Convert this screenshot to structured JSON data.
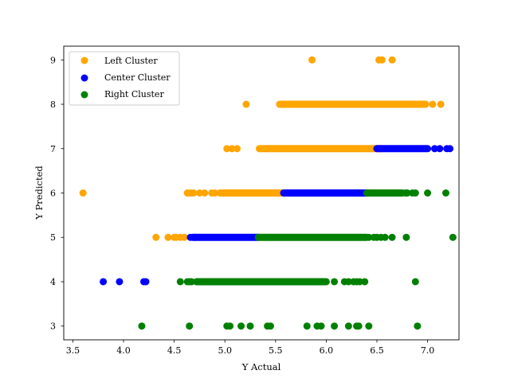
{
  "chart_data": {
    "type": "scatter",
    "title": "",
    "xlabel": "Y Actual",
    "ylabel": "Y Predicted",
    "xlim": [
      3.41,
      7.31
    ],
    "ylim": [
      2.69,
      9.31
    ],
    "xticks": [
      "3.5",
      "4.0",
      "4.5",
      "5.0",
      "5.5",
      "6.0",
      "6.5",
      "7.0"
    ],
    "yticks": [
      "3",
      "4",
      "5",
      "6",
      "7",
      "8",
      "9"
    ],
    "grid": false,
    "legend_position": "upper-left",
    "series": [
      {
        "name": "Left Cluster",
        "color": "#ffa500",
        "rows": [
          {
            "y": 9,
            "xs": [
              5.86,
              6.52,
              6.55,
              6.65
            ]
          },
          {
            "y": 8,
            "ranges": [
              [
                5.55,
                6.98
              ]
            ],
            "xs": [
              5.21,
              5.54,
              5.57,
              5.59,
              5.62,
              5.75,
              7.05,
              7.13
            ]
          },
          {
            "y": 7,
            "ranges": [
              [
                5.35,
                6.55
              ]
            ],
            "xs": [
              5.02,
              5.07,
              5.12,
              5.34
            ]
          },
          {
            "y": 6,
            "ranges": [
              [
                4.95,
                5.58
              ]
            ],
            "xs": [
              3.6,
              4.63,
              4.65,
              4.67,
              4.69,
              4.75,
              4.8,
              4.87,
              4.9
            ]
          },
          {
            "y": 5,
            "xs": [
              4.32,
              4.44,
              4.5,
              4.52,
              4.56,
              4.6
            ]
          }
        ]
      },
      {
        "name": "Center Cluster",
        "color": "#0000ff",
        "rows": [
          {
            "y": 7,
            "ranges": [
              [
                6.5,
                7.0
              ]
            ],
            "xs": [
              7.07,
              7.12,
              7.19,
              7.22
            ]
          },
          {
            "y": 6,
            "ranges": [
              [
                5.58,
                6.4
              ]
            ]
          },
          {
            "y": 5,
            "ranges": [
              [
                4.68,
                5.33
              ]
            ],
            "xs": [
              4.66,
              4.7
            ]
          },
          {
            "y": 4,
            "xs": [
              3.8,
              3.96,
              4.2,
              4.22
            ]
          }
        ]
      },
      {
        "name": "Right Cluster",
        "color": "#008000",
        "rows": [
          {
            "y": 6,
            "ranges": [
              [
                6.4,
                6.75
              ]
            ],
            "xs": [
              6.78,
              6.8,
              6.85,
              6.88,
              7.0,
              7.18
            ]
          },
          {
            "y": 5,
            "ranges": [
              [
                5.33,
                6.4
              ]
            ],
            "xs": [
              6.42,
              6.47,
              6.5,
              6.54,
              6.58,
              6.65,
              6.79,
              7.25
            ]
          },
          {
            "y": 4,
            "ranges": [
              [
                4.72,
                6.0
              ]
            ],
            "xs": [
              4.56,
              4.63,
              4.65,
              4.67,
              6.08,
              6.18,
              6.22,
              6.27,
              6.3,
              6.33,
              6.38,
              6.88
            ]
          },
          {
            "y": 3,
            "xs": [
              4.18,
              4.65,
              5.02,
              5.05,
              5.16,
              5.25,
              5.42,
              5.45,
              5.81,
              5.91,
              5.95,
              6.08,
              6.22,
              6.3,
              6.32,
              6.42,
              6.9
            ]
          }
        ]
      }
    ]
  }
}
